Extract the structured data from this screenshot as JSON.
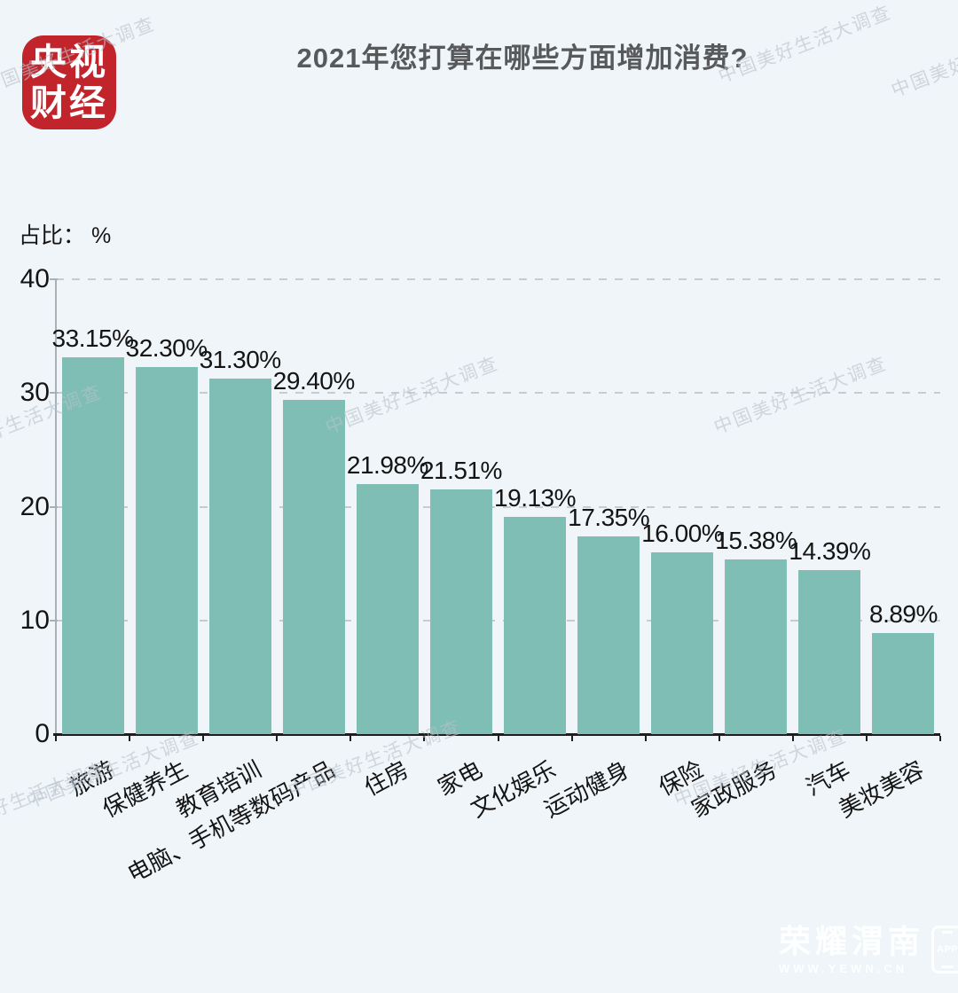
{
  "page": {
    "background_color": "#EFF5F9"
  },
  "logo": {
    "line1": "央视",
    "line2": "财经",
    "color": "#C2242C"
  },
  "axis": {
    "unit_label": "占比： %"
  },
  "chart_data": {
    "type": "bar",
    "title": "2021年您打算在哪些方面增加消费?",
    "ylabel": "占比：%",
    "xlabel": "",
    "ylim": [
      0,
      40
    ],
    "yticks": [
      0,
      10,
      20,
      30,
      40
    ],
    "grid": "horizontal-dashed",
    "legend": "none",
    "bar_color": "#7FBEB4",
    "categories": [
      "旅游",
      "保健养生",
      "教育培训",
      "电脑、手机等数码产品",
      "住房",
      "家电",
      "文化娱乐",
      "运动健身",
      "保险",
      "家政服务",
      "汽车",
      "美妆美容"
    ],
    "values": [
      33.15,
      32.3,
      31.3,
      29.4,
      21.98,
      21.51,
      19.13,
      17.35,
      16.0,
      15.38,
      14.39,
      8.89
    ],
    "value_labels": [
      "33.15%",
      "32.30%",
      "31.30%",
      "29.40%",
      "21.98%",
      "21.51%",
      "19.13%",
      "17.35%",
      "16.00%",
      "15.38%",
      "14.39%",
      "8.89%"
    ]
  },
  "watermark": {
    "text": "中国美好生活大调查"
  },
  "corner_watermark": {
    "name": "荣耀渭南",
    "url": "WWW.YEWN.CN",
    "badge": "APP"
  }
}
